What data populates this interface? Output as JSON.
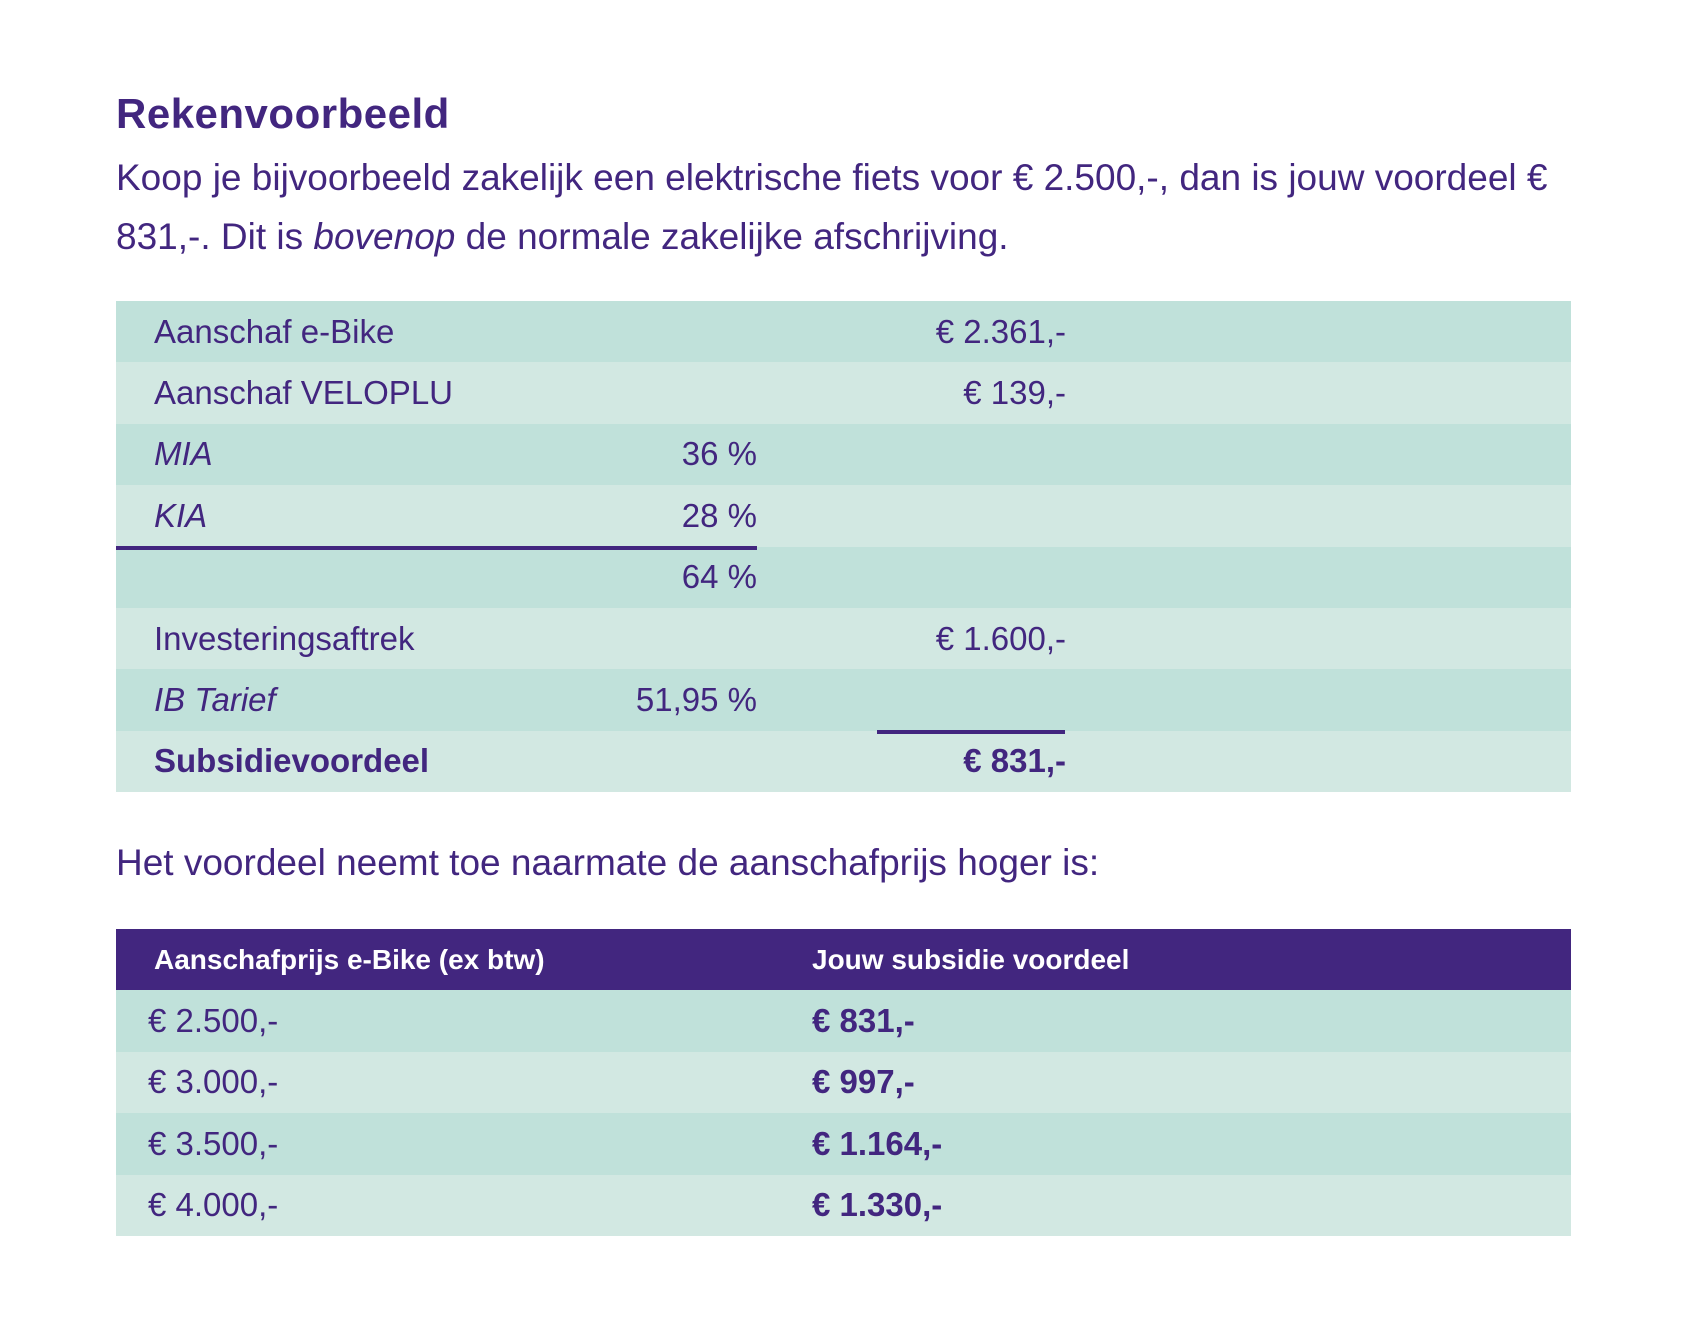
{
  "title": "Rekenvoorbeeld",
  "intro": {
    "part1": "Koop je bijvoorbeeld zakelijk een elektrische fiets voor € 2.500,-, dan is jouw voordeel € 831,-. Dit is ",
    "emphasis": "bovenop",
    "part2": " de normale zakelijke afschrijving."
  },
  "calc_table": [
    {
      "label": "Aanschaf e-Bike",
      "pct": "",
      "amount": "€ 2.361,-"
    },
    {
      "label": "Aanschaf VELOPLU",
      "pct": "",
      "amount": "€ 139,-"
    },
    {
      "label": "MIA",
      "pct": "36 %",
      "amount": ""
    },
    {
      "label": "KIA",
      "pct": "28 %",
      "amount": ""
    },
    {
      "label": "",
      "pct": "64 %",
      "amount": ""
    },
    {
      "label": "Investeringsaftrek",
      "pct": "",
      "amount": "€ 1.600,-"
    },
    {
      "label": "IB Tarief",
      "pct": "51,95 %",
      "amount": ""
    },
    {
      "label": "Subsidievoordeel",
      "pct": "",
      "amount": "€ 831,-"
    }
  ],
  "mid_text": "Het voordeel neemt toe naarmate de aanschafprijs hoger is:",
  "price_table": {
    "headers": [
      "Aanschafprijs e-Bike (ex btw)",
      "Jouw subsidie voordeel"
    ],
    "rows": [
      [
        "€ 2.500,-",
        "€ 831,-"
      ],
      [
        "€ 3.000,-",
        "€ 997,-"
      ],
      [
        "€ 3.500,-",
        "€ 1.164,-"
      ],
      [
        "€ 4.000,-",
        "€ 1.330,-"
      ]
    ]
  },
  "colors": {
    "purple": "#42267f",
    "teal_dark": "#c0e1da",
    "teal_light": "#d2e8e2"
  }
}
